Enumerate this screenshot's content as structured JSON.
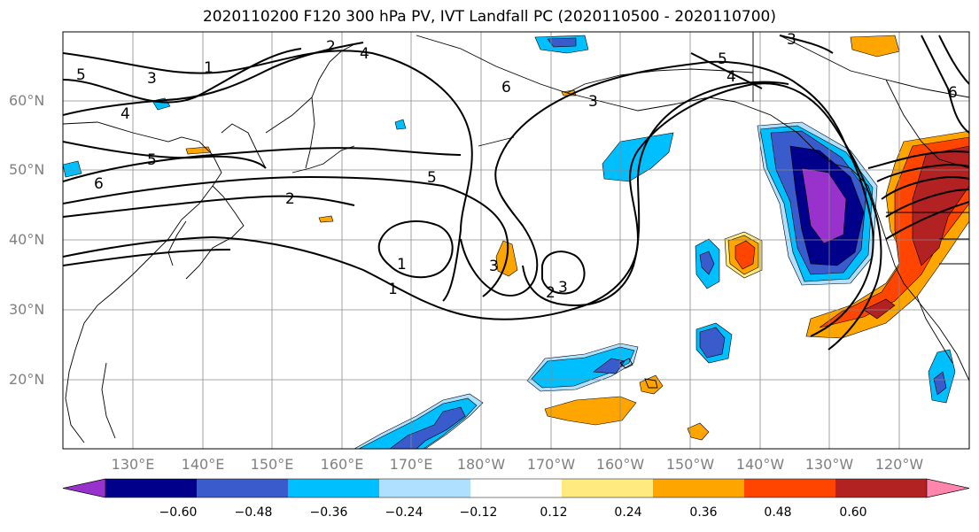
{
  "title": "2020110200 F120 300 hPa PV, IVT Landfall PC (2020110500 - 2020110700)",
  "latitude_labels": [
    "60°N",
    "50°N",
    "40°N",
    "30°N",
    "20°N"
  ],
  "longitude_labels": [
    "130°E",
    "140°E",
    "150°E",
    "160°E",
    "170°E",
    "180°W",
    "170°W",
    "160°W",
    "150°W",
    "140°W",
    "130°W",
    "120°W"
  ],
  "contour_labels": [
    "2",
    "4",
    "1",
    "5",
    "3",
    "4",
    "6",
    "5",
    "4",
    "5",
    "6",
    "5",
    "2",
    "3",
    "1",
    "1",
    "2",
    "3",
    "3",
    "3",
    "6"
  ],
  "colorbar": {
    "ticks": [
      "−0.60",
      "−0.48",
      "−0.36",
      "−0.24",
      "−0.12",
      "0.12",
      "0.24",
      "0.36",
      "0.48",
      "0.60"
    ],
    "colors": [
      "#9932CC",
      "#00008B",
      "#3A5BCB",
      "#00BFFF",
      "#B0E0FF",
      "#FFFFFF",
      "#FFEA80",
      "#FFA500",
      "#FF4500",
      "#B22222",
      "#FF85AD"
    ]
  },
  "chart_data": {
    "type": "map",
    "title": "2020110200 F120 300 hPa PV, IVT Landfall PC (2020110500 - 2020110700)",
    "lon_range": [
      "120°E",
      "110°W"
    ],
    "lat_range": [
      10,
      70
    ],
    "lat_ticks": [
      60,
      50,
      40,
      30,
      20
    ],
    "lon_ticks": [
      "130°E",
      "140°E",
      "150°E",
      "160°E",
      "170°E",
      "180°W",
      "170°W",
      "160°W",
      "150°W",
      "140°W",
      "130°W",
      "120°W"
    ],
    "grid": true,
    "contour_field": "300 hPa PV",
    "contour_levels": [
      1,
      2,
      3,
      4,
      5,
      6
    ],
    "shaded_field": "IVT Landfall PC",
    "shading_levels": [
      -0.6,
      -0.48,
      -0.36,
      -0.24,
      -0.12,
      0.12,
      0.24,
      0.36,
      0.48,
      0.6
    ],
    "colorbar_extend": "both"
  }
}
